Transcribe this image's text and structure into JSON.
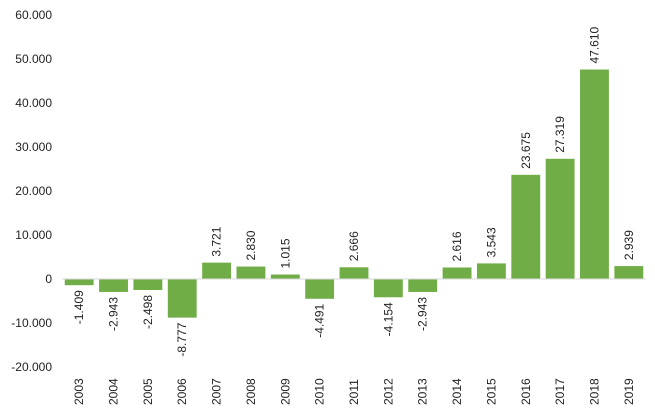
{
  "chart_data": {
    "type": "bar",
    "title": "",
    "xlabel": "",
    "ylabel": "",
    "grid": false,
    "legend": "none",
    "bar_color": "#70AD47",
    "axis_color": "#D9D9D9",
    "ylim": [
      -20000,
      60000
    ],
    "y_ticks": [
      60000,
      50000,
      40000,
      30000,
      20000,
      10000,
      0,
      -10000,
      -20000
    ],
    "y_tick_labels": [
      "60.000",
      "50.000",
      "40.000",
      "30.000",
      "20.000",
      "10.000",
      "0",
      "-10.000",
      "-20.000"
    ],
    "categories": [
      "2003",
      "2004",
      "2005",
      "2006",
      "2007",
      "2008",
      "2009",
      "2010",
      "2011",
      "2012",
      "2013",
      "2014",
      "2015",
      "2016",
      "2017",
      "2018",
      "2019"
    ],
    "values": [
      -1409,
      -2943,
      -2498,
      -8777,
      3721,
      2830,
      1015,
      -4491,
      2666,
      -4154,
      -2943,
      2616,
      3543,
      23675,
      27319,
      47610,
      2939
    ],
    "data_labels": [
      "-1.409",
      "-2.943",
      "-2.498",
      "-8.777",
      "3.721",
      "2.830",
      "1.015",
      "-4.491",
      "2.666",
      "-4.154",
      "-2.943",
      "2.616",
      "3.543",
      "23.675",
      "27.319",
      "47.610",
      "2.939"
    ]
  }
}
